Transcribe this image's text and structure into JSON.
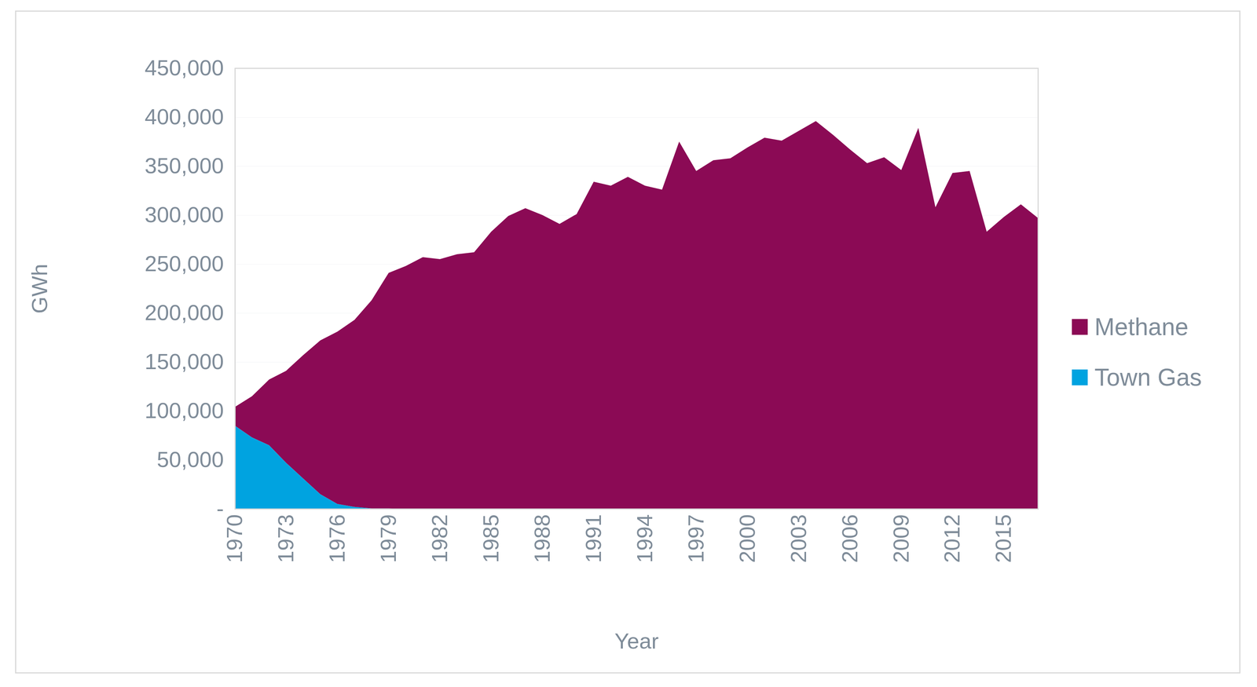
{
  "chart_data": {
    "type": "area",
    "stacked": true,
    "x_label": "Year",
    "y_label": "GWh",
    "x": [
      1970,
      1971,
      1972,
      1973,
      1974,
      1975,
      1976,
      1977,
      1978,
      1979,
      1980,
      1981,
      1982,
      1983,
      1984,
      1985,
      1986,
      1987,
      1988,
      1989,
      1990,
      1991,
      1992,
      1993,
      1994,
      1995,
      1996,
      1997,
      1998,
      1999,
      2000,
      2001,
      2002,
      2003,
      2004,
      2005,
      2006,
      2007,
      2008,
      2009,
      2010,
      2011,
      2012,
      2013,
      2014,
      2015,
      2016,
      2017
    ],
    "series": [
      {
        "name": "Methane",
        "color": "#8b0a55",
        "values": [
          19000,
          42000,
          67000,
          94000,
          126000,
          157000,
          176000,
          191000,
          212500,
          240500,
          248000,
          257000,
          255000,
          260000,
          262000,
          283000,
          299000,
          307000,
          300000,
          291000,
          301000,
          334000,
          330000,
          339000,
          330000,
          326000,
          375000,
          345000,
          356000,
          358000,
          369000,
          379000,
          376000,
          386000,
          396000,
          382000,
          367000,
          353000,
          359000,
          346000,
          389000,
          308000,
          343000,
          345000,
          283000,
          298000,
          311000,
          297000
        ]
      },
      {
        "name": "Town Gas",
        "color": "#00a3e0",
        "values": [
          85000,
          73000,
          65000,
          47000,
          31000,
          15000,
          5000,
          2000,
          500,
          500,
          0,
          0,
          0,
          0,
          0,
          0,
          0,
          0,
          0,
          0,
          0,
          0,
          0,
          0,
          0,
          0,
          0,
          0,
          0,
          0,
          0,
          0,
          0,
          0,
          0,
          0,
          0,
          0,
          0,
          0,
          0,
          0,
          0,
          0,
          0,
          0,
          0,
          0
        ]
      }
    ],
    "xlim": [
      1970,
      2017
    ],
    "xticks": [
      1970,
      1973,
      1976,
      1979,
      1982,
      1985,
      1988,
      1991,
      1994,
      1997,
      2000,
      2003,
      2006,
      2009,
      2012,
      2015
    ],
    "ylim": [
      0,
      450000
    ],
    "yticks": [
      {
        "value": 0,
        "label": "-"
      },
      {
        "value": 50000,
        "label": "50,000"
      },
      {
        "value": 100000,
        "label": "100,000"
      },
      {
        "value": 150000,
        "label": "150,000"
      },
      {
        "value": 200000,
        "label": "200,000"
      },
      {
        "value": 250000,
        "label": "250,000"
      },
      {
        "value": 300000,
        "label": "300,000"
      },
      {
        "value": 350000,
        "label": "350,000"
      },
      {
        "value": 400000,
        "label": "400,000"
      },
      {
        "value": 450000,
        "label": "450,000"
      }
    ],
    "grid": true,
    "legend": "right"
  }
}
